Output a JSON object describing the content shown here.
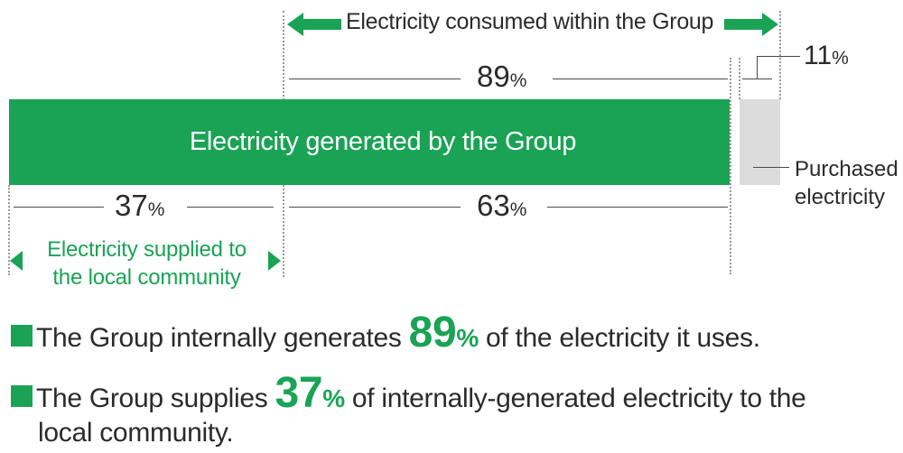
{
  "labels": {
    "consumed_within_group": "Electricity consumed within the Group",
    "generated_by_group": "Electricity generated by the Group",
    "purchased_line1": "Purchased",
    "purchased_line2": "electricity",
    "community_line1": "Electricity supplied to",
    "community_line2": "the local community"
  },
  "percentages": {
    "consumed": {
      "value": "89",
      "unit": "%"
    },
    "purchased": {
      "value": "11",
      "unit": "%"
    },
    "supplied_community": {
      "value": "37",
      "unit": "%"
    },
    "internal_use": {
      "value": "63",
      "unit": "%"
    }
  },
  "statements": [
    {
      "before": "The Group internally generates ",
      "highlight": "89",
      "unit": "%",
      "after": " of the electricity it uses."
    },
    {
      "before": "The Group supplies ",
      "highlight": "37",
      "unit": "%",
      "after_line1": " of internally-generated electricity to the",
      "after_line2": "local community."
    }
  ],
  "colors": {
    "accent_green": "#1aa355",
    "purchased_gray": "#dcdcdc",
    "text": "#2b2b2b"
  }
}
